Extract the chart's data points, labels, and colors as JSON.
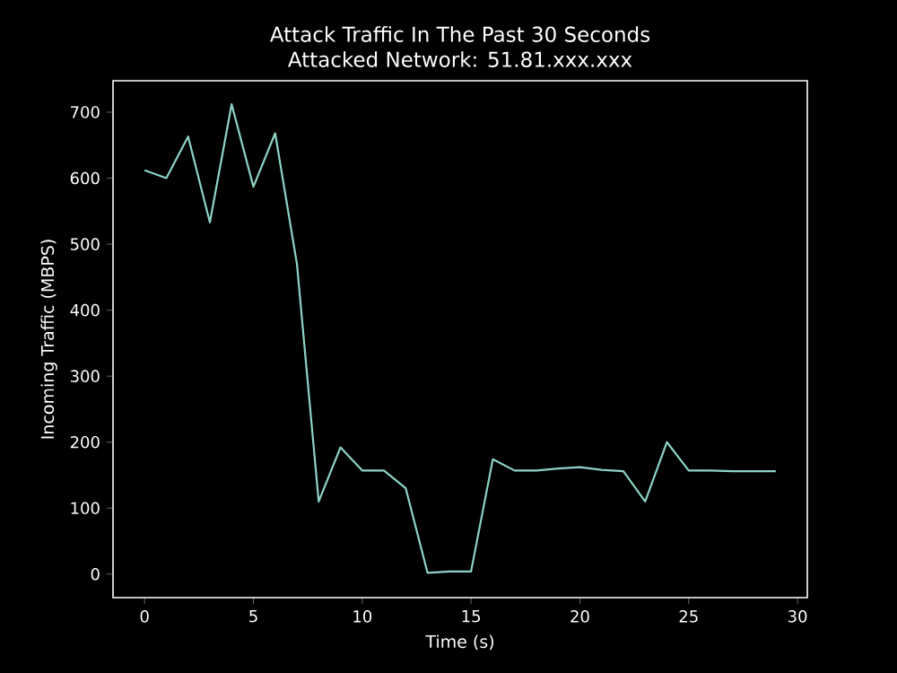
{
  "chart_data": {
    "type": "line",
    "title": "Attack Traffic In The Past 30 Seconds",
    "subtitle": "Attacked Network: 51.81.xxx.xxx",
    "xlabel": "Time (s)",
    "ylabel": "Incoming Traffic (MBPS)",
    "x": [
      0,
      1,
      2,
      3,
      4,
      5,
      6,
      7,
      8,
      9,
      10,
      11,
      12,
      13,
      14,
      15,
      16,
      17,
      18,
      19,
      20,
      21,
      22,
      23,
      24,
      25,
      26,
      27,
      28,
      29
    ],
    "series": [
      {
        "color": "#8dd3c7",
        "values": [
          612,
          600,
          663,
          533,
          712,
          587,
          668,
          470,
          110,
          192,
          157,
          157,
          130,
          2,
          4,
          4,
          174,
          157,
          157,
          160,
          162,
          158,
          156,
          110,
          200,
          157,
          157,
          156,
          156,
          156
        ]
      }
    ],
    "xlim": [
      -1.45,
      30.45
    ],
    "ylim": [
      -35.6,
      747.6
    ],
    "xticks": [
      0,
      5,
      10,
      15,
      20,
      25,
      30
    ],
    "yticks": [
      0,
      100,
      200,
      300,
      400,
      500,
      600,
      700
    ],
    "grid": false,
    "marker": "none",
    "line_style": "solid"
  }
}
